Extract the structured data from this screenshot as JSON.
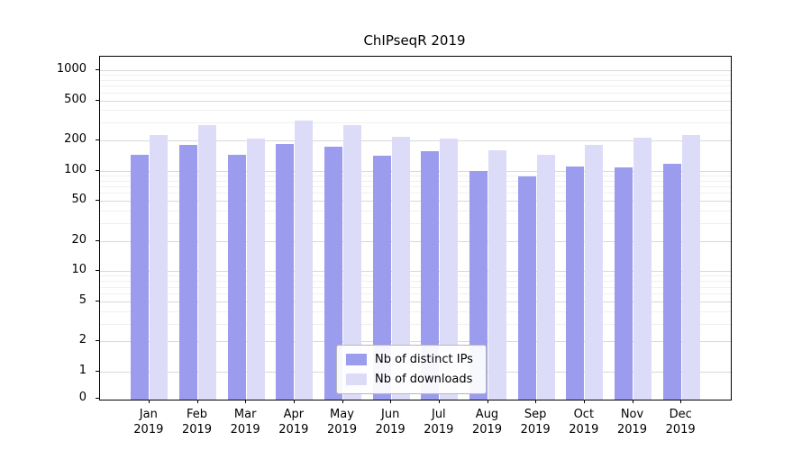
{
  "chart_data": {
    "type": "bar",
    "title": "ChIPseqR 2019",
    "categories": [
      "Jan",
      "Feb",
      "Mar",
      "Apr",
      "May",
      "Jun",
      "Jul",
      "Aug",
      "Sep",
      "Oct",
      "Nov",
      "Dec"
    ],
    "year": "2019",
    "series": [
      {
        "name": "Nb of distinct IPs",
        "color": "#9c9cee",
        "values": [
          148,
          185,
          146,
          190,
          178,
          145,
          158,
          102,
          90,
          112,
          110,
          119
        ]
      },
      {
        "name": "Nb of downloads",
        "color": "#dcdcf9",
        "values": [
          230,
          290,
          213,
          320,
          292,
          224,
          214,
          163,
          148,
          184,
          219,
          233
        ]
      }
    ],
    "yticks": [
      0,
      1,
      2,
      5,
      10,
      20,
      50,
      100,
      200,
      500,
      1000
    ],
    "y_scale": "symlog",
    "ylim": [
      0,
      1400
    ],
    "grid": true,
    "legend_position": "lower center"
  }
}
